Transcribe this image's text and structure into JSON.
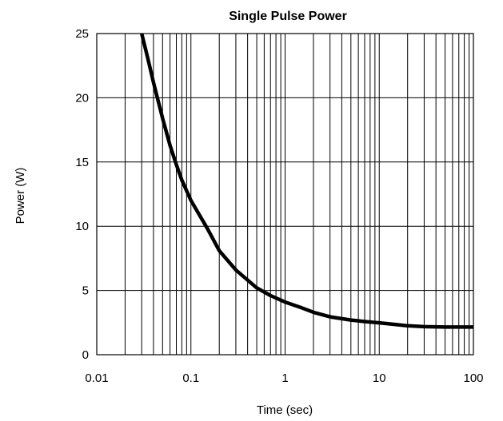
{
  "chart_data": {
    "type": "line",
    "title": "Single Pulse Power",
    "xlabel": "Time (sec)",
    "ylabel": "Power  (W)",
    "x_scale": "log",
    "xlim": [
      0.01,
      100
    ],
    "ylim": [
      0,
      25
    ],
    "x_ticks": [
      {
        "value": 0.01,
        "label": "0.01"
      },
      {
        "value": 0.1,
        "label": "0.1"
      },
      {
        "value": 1,
        "label": "1"
      },
      {
        "value": 10,
        "label": "10"
      },
      {
        "value": 100,
        "label": "100"
      }
    ],
    "y_ticks": [
      {
        "value": 0,
        "label": "0"
      },
      {
        "value": 5,
        "label": "5"
      },
      {
        "value": 10,
        "label": "10"
      },
      {
        "value": 15,
        "label": "15"
      },
      {
        "value": 20,
        "label": "20"
      },
      {
        "value": 25,
        "label": "25"
      }
    ],
    "grid": true,
    "line_color": "#000000",
    "series": [
      {
        "x": [
          0.03,
          0.035,
          0.04,
          0.05,
          0.06,
          0.07,
          0.08,
          0.1,
          0.15,
          0.2,
          0.3,
          0.5,
          0.7,
          1,
          1.5,
          2,
          3,
          5,
          7,
          10,
          15,
          20,
          30,
          50,
          70,
          100
        ],
        "y": [
          25,
          23.0,
          21.2,
          18.4,
          16.3,
          14.8,
          13.6,
          12.0,
          9.8,
          8.1,
          6.6,
          5.2,
          4.6,
          4.1,
          3.65,
          3.3,
          2.95,
          2.7,
          2.58,
          2.48,
          2.35,
          2.25,
          2.18,
          2.15,
          2.15,
          2.15
        ]
      }
    ]
  }
}
